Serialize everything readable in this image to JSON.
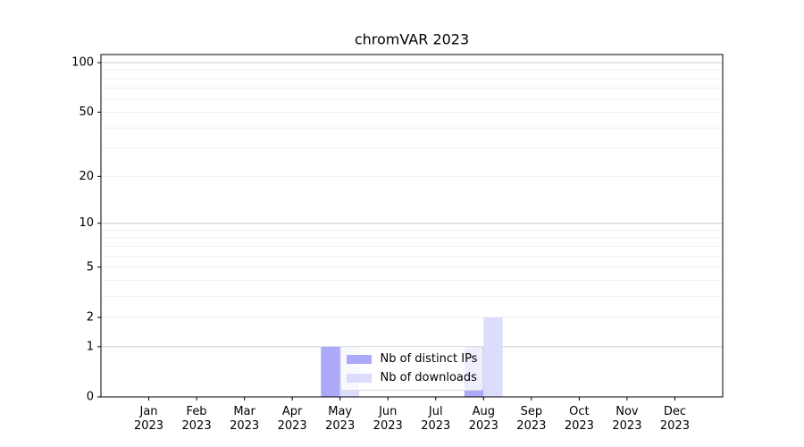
{
  "chart_data": {
    "type": "bar",
    "title": "chromVAR 2023",
    "categories": [
      "Jan\n2023",
      "Feb\n2023",
      "Mar\n2023",
      "Apr\n2023",
      "May\n2023",
      "Jun\n2023",
      "Jul\n2023",
      "Aug\n2023",
      "Sep\n2023",
      "Oct\n2023",
      "Nov\n2023",
      "Dec\n2023"
    ],
    "series": [
      {
        "name": "Nb of distinct IPs",
        "color": "#aaaaf8",
        "values": [
          0,
          0,
          0,
          0,
          1,
          0,
          0,
          1,
          0,
          0,
          0,
          0
        ]
      },
      {
        "name": "Nb of downloads",
        "color": "#dcdcfc",
        "values": [
          0,
          0,
          0,
          0,
          1,
          0,
          0,
          2,
          0,
          0,
          0,
          0
        ]
      }
    ],
    "yscale": "log1p",
    "ylim": [
      0,
      112
    ],
    "yticks": [
      0,
      1,
      2,
      5,
      10,
      20,
      50,
      100
    ],
    "ymajorgrid": [
      1,
      10,
      100
    ],
    "yminorgrid": [
      2,
      3,
      4,
      5,
      6,
      7,
      8,
      9,
      20,
      30,
      40,
      50,
      60,
      70,
      80,
      90
    ],
    "grid": true,
    "legend": "lower center"
  }
}
